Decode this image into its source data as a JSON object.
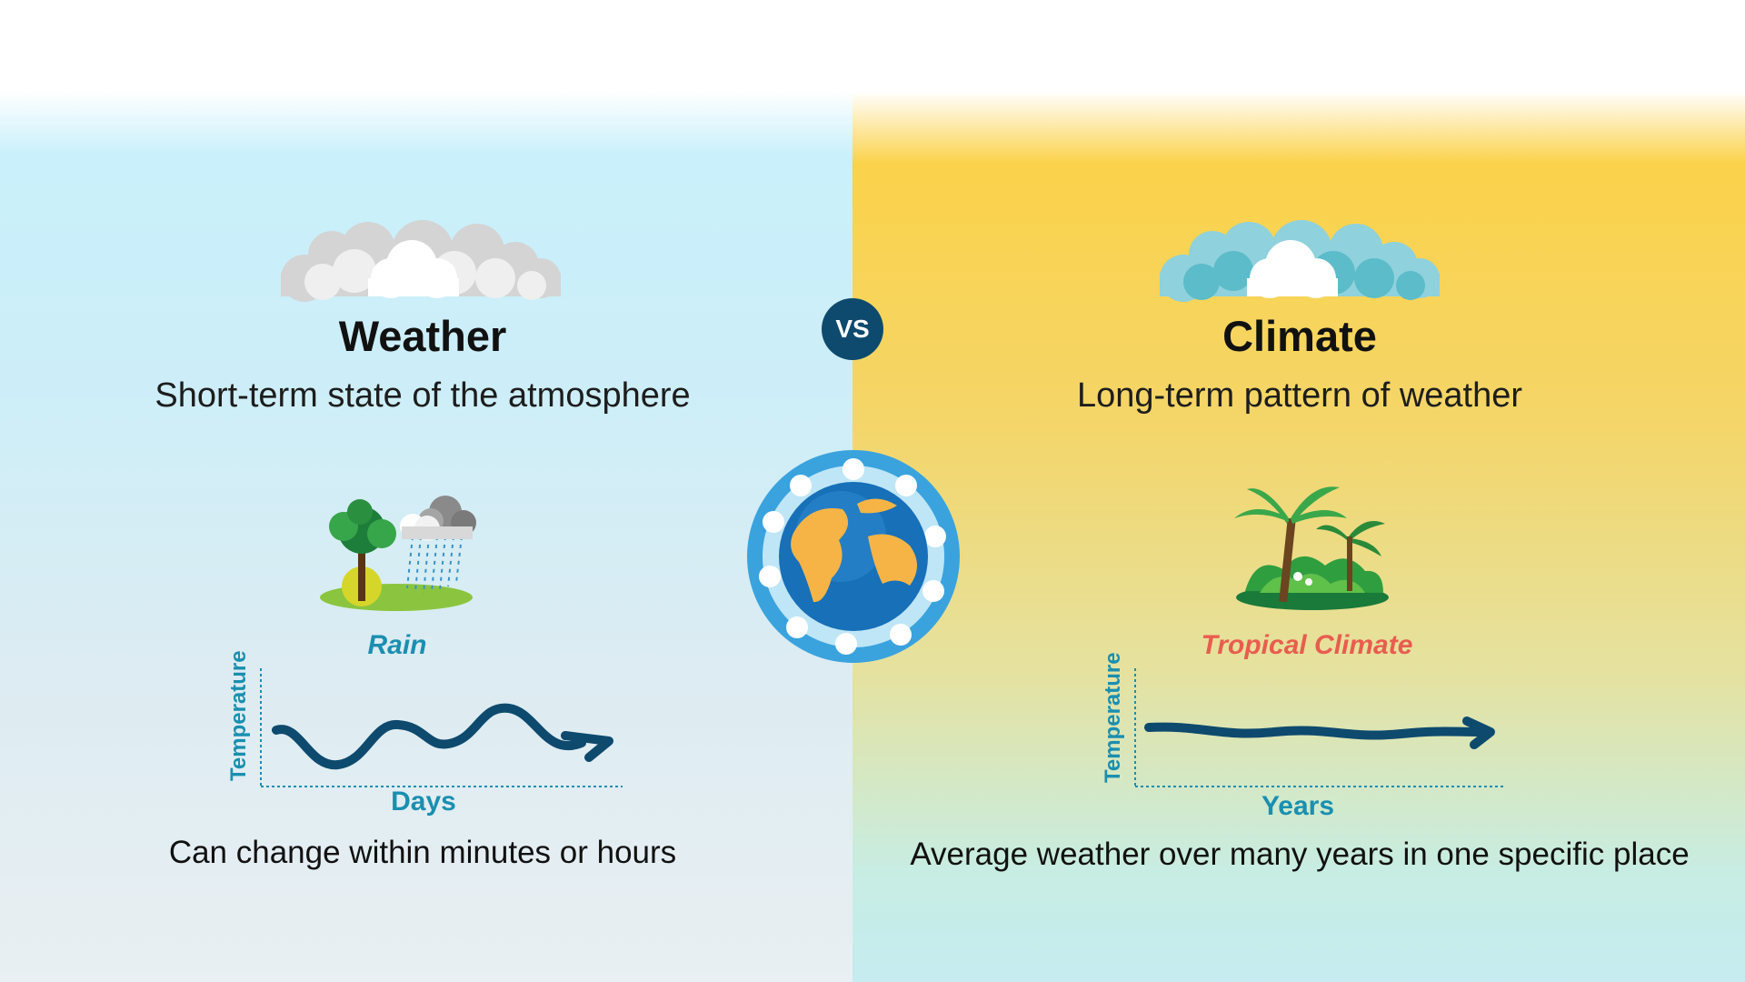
{
  "vs_label": "VS",
  "weather": {
    "title": "Weather",
    "subtitle": "Short-term state of the atmosphere",
    "example_label": "Rain",
    "chart_ylabel": "Temperature",
    "chart_xlabel": "Days",
    "description": "Can change within minutes or hours"
  },
  "climate": {
    "title": "Climate",
    "subtitle": "Long-term pattern of weather",
    "example_label": "Tropical Climate",
    "chart_ylabel": "Temperature",
    "chart_xlabel": "Years",
    "description": "Average weather over many years in one specific place"
  },
  "colors": {
    "weather_panel": "#c9f0fb",
    "climate_panel": "#fbd24a",
    "accent_teal": "#1a8fb0",
    "accent_coral": "#e85d4f",
    "arrow_navy": "#0e4a6e",
    "vs_badge": "#0e4a6e"
  },
  "icons": {
    "weather_cloud": "grey-cloud-icon",
    "climate_cloud": "teal-cloud-icon",
    "weather_scene": "tree-rain-cloud-icon",
    "climate_scene": "palm-island-icon",
    "center": "earth-globe-icon"
  }
}
